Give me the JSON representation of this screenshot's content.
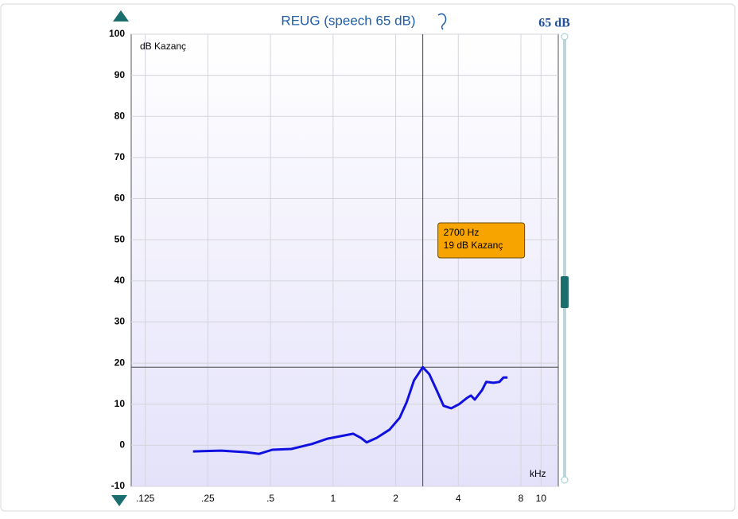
{
  "chart_data": {
    "type": "line",
    "title": "REUG (speech 65 dB)",
    "level_label": "65 dB",
    "ylabel": "dB Kazanç",
    "xlabel": "kHz",
    "xscale": "log",
    "grid": true,
    "xlim": [
      0.107,
      12.1
    ],
    "ylim": [
      -10,
      100
    ],
    "xticks": [
      {
        "value": 0.125,
        "label": ".125"
      },
      {
        "value": 0.25,
        "label": ".25"
      },
      {
        "value": 0.5,
        "label": ".5"
      },
      1,
      2,
      4,
      8,
      10
    ],
    "yticks": [
      -10,
      0,
      10,
      20,
      30,
      40,
      50,
      60,
      70,
      80,
      90,
      100
    ],
    "series": [
      {
        "color": "#1010e0",
        "x": [
          0.212,
          0.29,
          0.383,
          0.44,
          0.51,
          0.63,
          0.79,
          0.94,
          1.25,
          1.36,
          1.45,
          1.62,
          1.87,
          2.09,
          2.26,
          2.45,
          2.7,
          2.9,
          3.15,
          3.4,
          3.7,
          4.04,
          4.4,
          4.6,
          4.8,
          5.2,
          5.45,
          5.9,
          6.3,
          6.6,
          6.9
        ],
        "values": [
          -1.5,
          -1.3,
          -1.7,
          -2.1,
          -1.1,
          -0.9,
          0.3,
          1.6,
          2.8,
          1.8,
          0.7,
          1.8,
          3.8,
          6.7,
          10.5,
          15.8,
          19,
          17.3,
          13.4,
          9.6,
          9.0,
          10.0,
          11.5,
          12.1,
          11.1,
          13.4,
          15.4,
          15.2,
          15.4,
          16.5,
          16.5
        ]
      }
    ],
    "cursor": {
      "x": 2.7,
      "y": 19,
      "labels": [
        "2700 Hz",
        "19 dB Kazanç"
      ]
    }
  }
}
